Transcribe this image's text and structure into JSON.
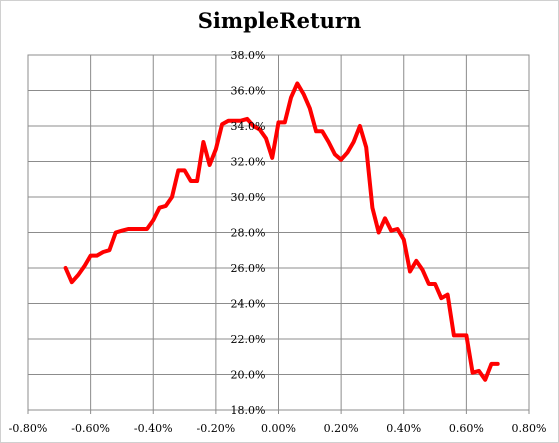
{
  "chart_data": {
    "type": "line",
    "title": "SimpleReturn",
    "xlabel": "",
    "ylabel": "",
    "xlim": [
      -0.008,
      0.008
    ],
    "ylim": [
      0.18,
      0.38
    ],
    "x_ticks": [
      -0.008,
      -0.006,
      -0.004,
      -0.002,
      0.0,
      0.002,
      0.004,
      0.006,
      0.008
    ],
    "x_tick_labels": [
      "-0.80%",
      "-0.60%",
      "-0.40%",
      "-0.20%",
      "0.00%",
      "0.20%",
      "0.40%",
      "0.60%",
      "0.80%"
    ],
    "y_ticks": [
      0.18,
      0.2,
      0.22,
      0.24,
      0.26,
      0.28,
      0.3,
      0.32,
      0.34,
      0.36,
      0.38
    ],
    "y_tick_labels": [
      "18.0%",
      "20.0%",
      "22.0%",
      "24.0%",
      "26.0%",
      "28.0%",
      "30.0%",
      "32.0%",
      "34.0%",
      "36.0%",
      "38.0%"
    ],
    "grid": true,
    "legend": "none",
    "series": [
      {
        "color": "#ff0000",
        "x": [
          -0.0068,
          -0.0066,
          -0.0064,
          -0.0062,
          -0.006,
          -0.0058,
          -0.0056,
          -0.0054,
          -0.0052,
          -0.005,
          -0.0048,
          -0.0046,
          -0.0044,
          -0.0042,
          -0.004,
          -0.0038,
          -0.0036,
          -0.0034,
          -0.0032,
          -0.003,
          -0.0028,
          -0.0026,
          -0.0024,
          -0.0022,
          -0.002,
          -0.0018,
          -0.0016,
          -0.0014,
          -0.0012,
          -0.001,
          -0.0008,
          -0.0006,
          -0.0004,
          -0.0002,
          0.0,
          0.0002,
          0.0004,
          0.0006,
          0.0008,
          0.001,
          0.0012,
          0.0014,
          0.0016,
          0.0018,
          0.002,
          0.0022,
          0.0024,
          0.0026,
          0.0028,
          0.003,
          0.0032,
          0.0034,
          0.0036,
          0.0038,
          0.004,
          0.0042,
          0.0044,
          0.0046,
          0.0048,
          0.005,
          0.0052,
          0.0054,
          0.0056,
          0.0058,
          0.006,
          0.0062,
          0.0064,
          0.0066,
          0.0068,
          0.007
        ],
        "y": [
          0.26,
          0.252,
          0.256,
          0.261,
          0.267,
          0.267,
          0.269,
          0.27,
          0.28,
          0.281,
          0.282,
          0.282,
          0.282,
          0.282,
          0.287,
          0.294,
          0.295,
          0.3,
          0.315,
          0.315,
          0.309,
          0.309,
          0.331,
          0.318,
          0.327,
          0.341,
          0.343,
          0.343,
          0.343,
          0.344,
          0.34,
          0.338,
          0.333,
          0.322,
          0.342,
          0.342,
          0.356,
          0.364,
          0.358,
          0.35,
          0.337,
          0.337,
          0.331,
          0.324,
          0.321,
          0.325,
          0.331,
          0.34,
          0.328,
          0.294,
          0.28,
          0.288,
          0.281,
          0.282,
          0.276,
          0.258,
          0.264,
          0.259,
          0.251,
          0.251,
          0.243,
          0.245,
          0.222,
          0.222,
          0.222,
          0.201,
          0.202,
          0.197,
          0.206,
          0.206
        ]
      }
    ]
  }
}
